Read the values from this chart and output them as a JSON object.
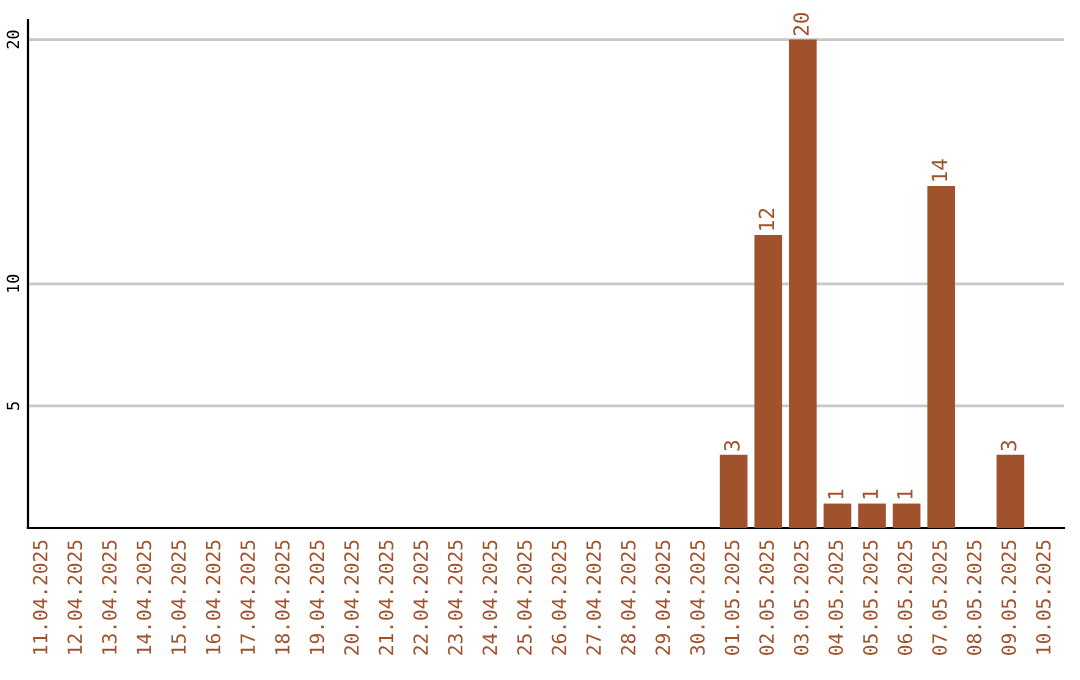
{
  "chart_data": {
    "type": "bar",
    "categories": [
      "11.04.2025",
      "12.04.2025",
      "13.04.2025",
      "14.04.2025",
      "15.04.2025",
      "16.04.2025",
      "17.04.2025",
      "18.04.2025",
      "19.04.2025",
      "20.04.2025",
      "21.04.2025",
      "22.04.2025",
      "23.04.2025",
      "24.04.2025",
      "25.04.2025",
      "26.04.2025",
      "27.04.2025",
      "28.04.2025",
      "29.04.2025",
      "30.04.2025",
      "01.05.2025",
      "02.05.2025",
      "03.05.2025",
      "04.05.2025",
      "05.05.2025",
      "06.05.2025",
      "07.05.2025",
      "08.05.2025",
      "09.05.2025",
      "10.05.2025"
    ],
    "values": [
      0,
      0,
      0,
      0,
      0,
      0,
      0,
      0,
      0,
      0,
      0,
      0,
      0,
      0,
      0,
      0,
      0,
      0,
      0,
      0,
      3,
      12,
      20,
      1,
      1,
      1,
      14,
      0,
      3,
      0
    ],
    "value_labels": [
      null,
      null,
      null,
      null,
      null,
      null,
      null,
      null,
      null,
      null,
      null,
      null,
      null,
      null,
      null,
      null,
      null,
      null,
      null,
      null,
      "3",
      "12",
      "20",
      "1",
      "1",
      "1",
      "14",
      null,
      "3",
      null
    ],
    "color": "#a0522d",
    "ylim": [
      0,
      20.8
    ],
    "yticks": [
      5,
      10,
      20
    ],
    "grid": "y"
  }
}
